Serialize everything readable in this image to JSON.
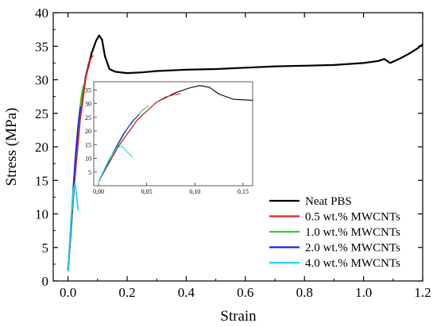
{
  "chart_data": {
    "type": "line",
    "title": "",
    "xlabel": "Strain",
    "ylabel": "Stress (MPa)",
    "xlim": [
      -0.05,
      1.2
    ],
    "ylim": [
      0,
      40
    ],
    "x_ticks": [
      0.0,
      0.2,
      0.4,
      0.6,
      0.8,
      1.0,
      1.2
    ],
    "x_tick_labels": [
      "0.0",
      "0.2",
      "0.4",
      "0.6",
      "0.8",
      "1.0",
      "1.2"
    ],
    "y_ticks": [
      0,
      5,
      10,
      15,
      20,
      25,
      30,
      35,
      40
    ],
    "y_tick_labels": [
      "0",
      "5",
      "10",
      "15",
      "20",
      "25",
      "30",
      "35",
      "40"
    ],
    "grid": false,
    "legend_position": "bottom-right",
    "series": [
      {
        "name": "Neat PBS",
        "color": "#000000",
        "x": [
          0.0,
          0.02,
          0.04,
          0.06,
          0.08,
          0.095,
          0.105,
          0.115,
          0.125,
          0.14,
          0.16,
          0.2,
          0.25,
          0.3,
          0.4,
          0.5,
          0.6,
          0.7,
          0.8,
          0.9,
          1.0,
          1.05,
          1.07,
          1.09,
          1.12,
          1.15,
          1.18,
          1.2
        ],
        "y": [
          1.5,
          14.0,
          24.0,
          30.5,
          34.0,
          35.8,
          36.6,
          36.0,
          33.5,
          31.6,
          31.2,
          31.0,
          31.1,
          31.3,
          31.5,
          31.6,
          31.8,
          32.0,
          32.1,
          32.2,
          32.5,
          32.8,
          33.1,
          32.5,
          33.1,
          33.8,
          34.6,
          35.3
        ]
      },
      {
        "name": "0.5 wt.% MWCNTs",
        "color": "#e81e1e",
        "x": [
          0.0,
          0.02,
          0.04,
          0.06,
          0.07,
          0.08,
          0.085
        ],
        "y": [
          1.5,
          14.0,
          24.0,
          30.5,
          32.5,
          33.4,
          33.6
        ]
      },
      {
        "name": "1.0 wt.% MWCNTs",
        "color": "#33cc33",
        "x": [
          0.0,
          0.015,
          0.03,
          0.045,
          0.052
        ],
        "y": [
          1.5,
          11.5,
          21.0,
          27.5,
          29.2
        ]
      },
      {
        "name": "2.0 wt.% MWCNTs",
        "color": "#1e1ee6",
        "x": [
          0.0,
          0.015,
          0.025,
          0.035,
          0.042
        ],
        "y": [
          1.5,
          12.0,
          18.5,
          23.5,
          26.0
        ]
      },
      {
        "name": "4.0 wt.% MWCNTs",
        "color": "#19d8f0",
        "x": [
          0.0,
          0.01,
          0.018,
          0.024,
          0.028,
          0.032,
          0.035
        ],
        "y": [
          1.5,
          9.0,
          13.5,
          14.5,
          13.0,
          11.5,
          10.5
        ]
      }
    ],
    "inset": {
      "xlim": [
        -0.005,
        0.16
      ],
      "ylim": [
        0,
        38
      ],
      "x_ticks": [
        0.0,
        0.05,
        0.1,
        0.15
      ],
      "x_tick_labels": [
        "0,00",
        "0,05",
        "0,10",
        "0,15"
      ],
      "y_ticks": [
        5,
        10,
        15,
        20,
        25,
        30,
        35
      ],
      "y_tick_labels": [
        "5",
        "10",
        "15",
        "20",
        "25",
        "30",
        "35"
      ]
    }
  }
}
